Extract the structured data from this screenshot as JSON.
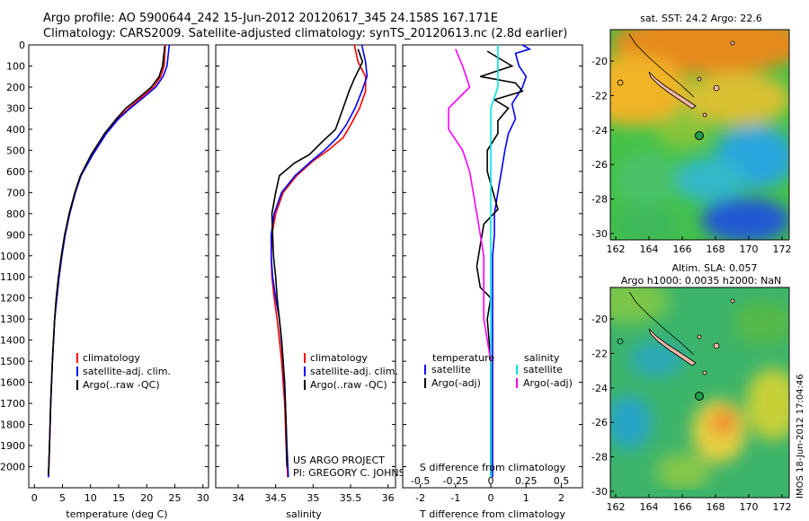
{
  "header": {
    "line1": "Argo profile: AO 5900644_242 15-Jun-2012 20120617_345 24.158S 167.171E",
    "line2": "Climatology: CARS2009. Satellite-adjusted climatology: synTS_20120613.nc (2.8d earlier)"
  },
  "colors": {
    "climatology": "#ff0000",
    "satellite": "#0000ff",
    "argo": "#000000",
    "salinity_sat": "#00e5e5",
    "salinity_argo": "#ff00ff"
  },
  "chart_data": [
    {
      "id": "temperature",
      "type": "line",
      "xlabel": "temperature (deg C)",
      "ylabel": "",
      "xlim": [
        -1,
        31
      ],
      "ylim": [
        2100,
        0
      ],
      "xticks": [
        0,
        5,
        10,
        15,
        20,
        25,
        30
      ],
      "yticks": [
        0,
        100,
        200,
        300,
        400,
        500,
        600,
        700,
        800,
        900,
        1000,
        1100,
        1200,
        1300,
        1400,
        1500,
        1600,
        1700,
        1800,
        1900,
        2000
      ],
      "series": [
        {
          "name": "climatology",
          "color": "#ff0000",
          "x": [
            23.3,
            23.1,
            22.5,
            21.2,
            19.0,
            16.8,
            14.8,
            12.6,
            10.2,
            8.2,
            7.2,
            6.2,
            5.4,
            4.8,
            4.3,
            3.9,
            3.6,
            3.2,
            2.9,
            2.7,
            2.5
          ],
          "y": [
            0,
            100,
            150,
            200,
            250,
            300,
            350,
            420,
            520,
            620,
            700,
            800,
            900,
            1000,
            1100,
            1200,
            1300,
            1500,
            1700,
            1900,
            2050
          ]
        },
        {
          "name": "satellite-adj. clim.",
          "color": "#0000ff",
          "x": [
            24.0,
            23.6,
            22.9,
            21.6,
            19.4,
            17.1,
            15.0,
            12.8,
            10.4,
            8.3,
            7.3,
            6.3,
            5.5,
            4.9,
            4.4,
            4.0,
            3.6,
            3.2,
            2.9,
            2.7,
            2.5
          ],
          "y": [
            0,
            100,
            150,
            200,
            250,
            300,
            350,
            420,
            520,
            620,
            700,
            800,
            900,
            1000,
            1100,
            1200,
            1300,
            1500,
            1700,
            1900,
            2050
          ]
        },
        {
          "name": "Argo(..raw -QC)",
          "color": "#000000",
          "x": [
            23.2,
            22.8,
            22.2,
            20.8,
            18.6,
            16.3,
            14.6,
            12.5,
            10.1,
            8.2,
            7.2,
            6.2,
            5.4,
            4.8,
            4.3,
            3.9,
            3.6,
            3.2,
            2.9,
            2.7,
            2.5
          ],
          "y": [
            5,
            100,
            150,
            200,
            250,
            300,
            350,
            420,
            520,
            620,
            700,
            800,
            900,
            1000,
            1100,
            1200,
            1300,
            1500,
            1700,
            1900,
            2040
          ]
        }
      ],
      "legend": [
        "climatology",
        "satellite-adj. clim.",
        "Argo(..raw -QC)"
      ]
    },
    {
      "id": "salinity",
      "type": "line",
      "xlabel": "salinity",
      "xlim": [
        33.7,
        36.1
      ],
      "ylim": [
        2100,
        0
      ],
      "xticks": [
        34,
        34.5,
        35,
        35.5,
        36
      ],
      "xticklabels": [
        "34",
        "34.5",
        "35",
        "35.5",
        "36"
      ],
      "series": [
        {
          "name": "climatology",
          "color": "#ff0000",
          "x": [
            35.55,
            35.6,
            35.7,
            35.7,
            35.62,
            35.5,
            35.4,
            35.2,
            35.0,
            34.78,
            34.6,
            34.5,
            34.45,
            34.44,
            34.45,
            34.48,
            34.52,
            34.58,
            34.62,
            34.64,
            34.66
          ],
          "y": [
            0,
            80,
            150,
            220,
            300,
            380,
            440,
            500,
            550,
            620,
            700,
            800,
            900,
            1000,
            1100,
            1200,
            1300,
            1500,
            1700,
            1900,
            2050
          ]
        },
        {
          "name": "satellite-adj. clim.",
          "color": "#0000ff",
          "x": [
            35.65,
            35.7,
            35.72,
            35.65,
            35.56,
            35.44,
            35.32,
            35.15,
            34.98,
            34.76,
            34.58,
            34.48,
            34.44,
            34.44,
            34.46,
            34.5,
            34.55,
            34.6,
            34.63,
            34.65,
            34.67
          ],
          "y": [
            0,
            80,
            150,
            220,
            300,
            380,
            440,
            500,
            550,
            620,
            700,
            800,
            900,
            1000,
            1100,
            1200,
            1300,
            1500,
            1700,
            1900,
            2050
          ]
        },
        {
          "name": "Argo(..raw -QC)",
          "color": "#000000",
          "x": [
            35.6,
            35.66,
            35.55,
            35.48,
            35.4,
            35.3,
            35.12,
            34.95,
            34.75,
            34.55,
            34.5,
            34.45,
            34.46,
            34.47,
            34.5,
            34.52,
            34.58,
            34.62,
            34.64,
            34.65
          ],
          "y": [
            20,
            80,
            160,
            220,
            300,
            400,
            460,
            520,
            560,
            620,
            700,
            800,
            900,
            1000,
            1100,
            1200,
            1400,
            1600,
            1800,
            2000
          ]
        }
      ],
      "legend": [
        "climatology",
        "satellite-adj. clim.",
        "Argo(..raw -QC)"
      ],
      "annotation_line1": "US ARGO PROJECT",
      "annotation_line2": "PI: GREGORY C. JOHNSON"
    },
    {
      "id": "difference",
      "type": "line",
      "xlabel": "T difference from climatology",
      "xlabel_top": "S difference from climatology",
      "xlim": [
        -2.5,
        2.6
      ],
      "ylim": [
        2100,
        0
      ],
      "xticks": [
        -2,
        -1,
        0,
        1,
        2
      ],
      "sticks": [
        -0.5,
        -0.25,
        0,
        0.25,
        0.5
      ],
      "series": [
        {
          "name": "temperature satellite",
          "color": "#0000ff",
          "x": [
            0.9,
            1.1,
            0.7,
            0.8,
            1.0,
            0.9,
            0.6,
            0.7,
            0.5,
            0.4,
            0.3,
            0.2,
            0.1,
            0.1,
            0.05,
            0.05,
            0.05,
            0.05,
            0.05,
            0.05,
            0.05
          ],
          "y": [
            0,
            20,
            40,
            100,
            150,
            200,
            280,
            350,
            420,
            500,
            600,
            700,
            800,
            900,
            1000,
            1100,
            1300,
            1500,
            1700,
            1900,
            2050
          ]
        },
        {
          "name": "temperature Argo(-adj)",
          "color": "#000000",
          "x": [
            -0.1,
            0.6,
            -0.3,
            0.7,
            0.9,
            0.1,
            0.5,
            0.2,
            0.2,
            -0.1,
            -0.1,
            0.2,
            -0.2,
            -0.3,
            -0.4,
            -0.3,
            0.0,
            -0.1,
            0.0,
            0.0,
            0.0
          ],
          "y": [
            30,
            100,
            150,
            180,
            220,
            260,
            300,
            360,
            420,
            500,
            600,
            780,
            850,
            950,
            1050,
            1150,
            1200,
            1300,
            1500,
            1800,
            2040
          ]
        },
        {
          "name": "salinity satellite",
          "color": "#00e5e5",
          "x": [
            0.05,
            0.05,
            0.0,
            0.0,
            0.0,
            0.0,
            0.0,
            0.0,
            0.0,
            0.0,
            0.0,
            0.0,
            0.0,
            0.0,
            0.0
          ],
          "y": [
            0,
            200,
            300,
            400,
            500,
            700,
            900,
            1100,
            1300,
            1500,
            1600,
            1700,
            1800,
            1900,
            2050
          ]
        },
        {
          "name": "salinity Argo(-adj)",
          "color": "#ff00ff",
          "x": [
            -0.25,
            -0.2,
            -0.15,
            -0.3,
            -0.3,
            -0.2,
            -0.15,
            -0.1,
            -0.05,
            -0.05,
            0.0
          ],
          "y": [
            20,
            100,
            200,
            300,
            400,
            500,
            600,
            800,
            1000,
            1300,
            1500
          ]
        }
      ],
      "legend_temp": "temperature",
      "legend_sal": "salinity",
      "legend_sat": "satellite",
      "legend_argo": "Argo(-adj)"
    }
  ],
  "maps": {
    "top_title": "sat. SST: 24.2 Argo: 22.6",
    "bottom_title_line1": "Altim. SLA: 0.057",
    "bottom_title_line2": "Argo h1000: 0.0035 h2000: NaN",
    "xticks": [
      "162",
      "164",
      "166",
      "168",
      "170",
      "172"
    ],
    "yticks": [
      "-20",
      "-22",
      "-24",
      "-26",
      "-28",
      "-30"
    ],
    "side_label": "IMOS 18-Jun-2012 17:04:46"
  }
}
